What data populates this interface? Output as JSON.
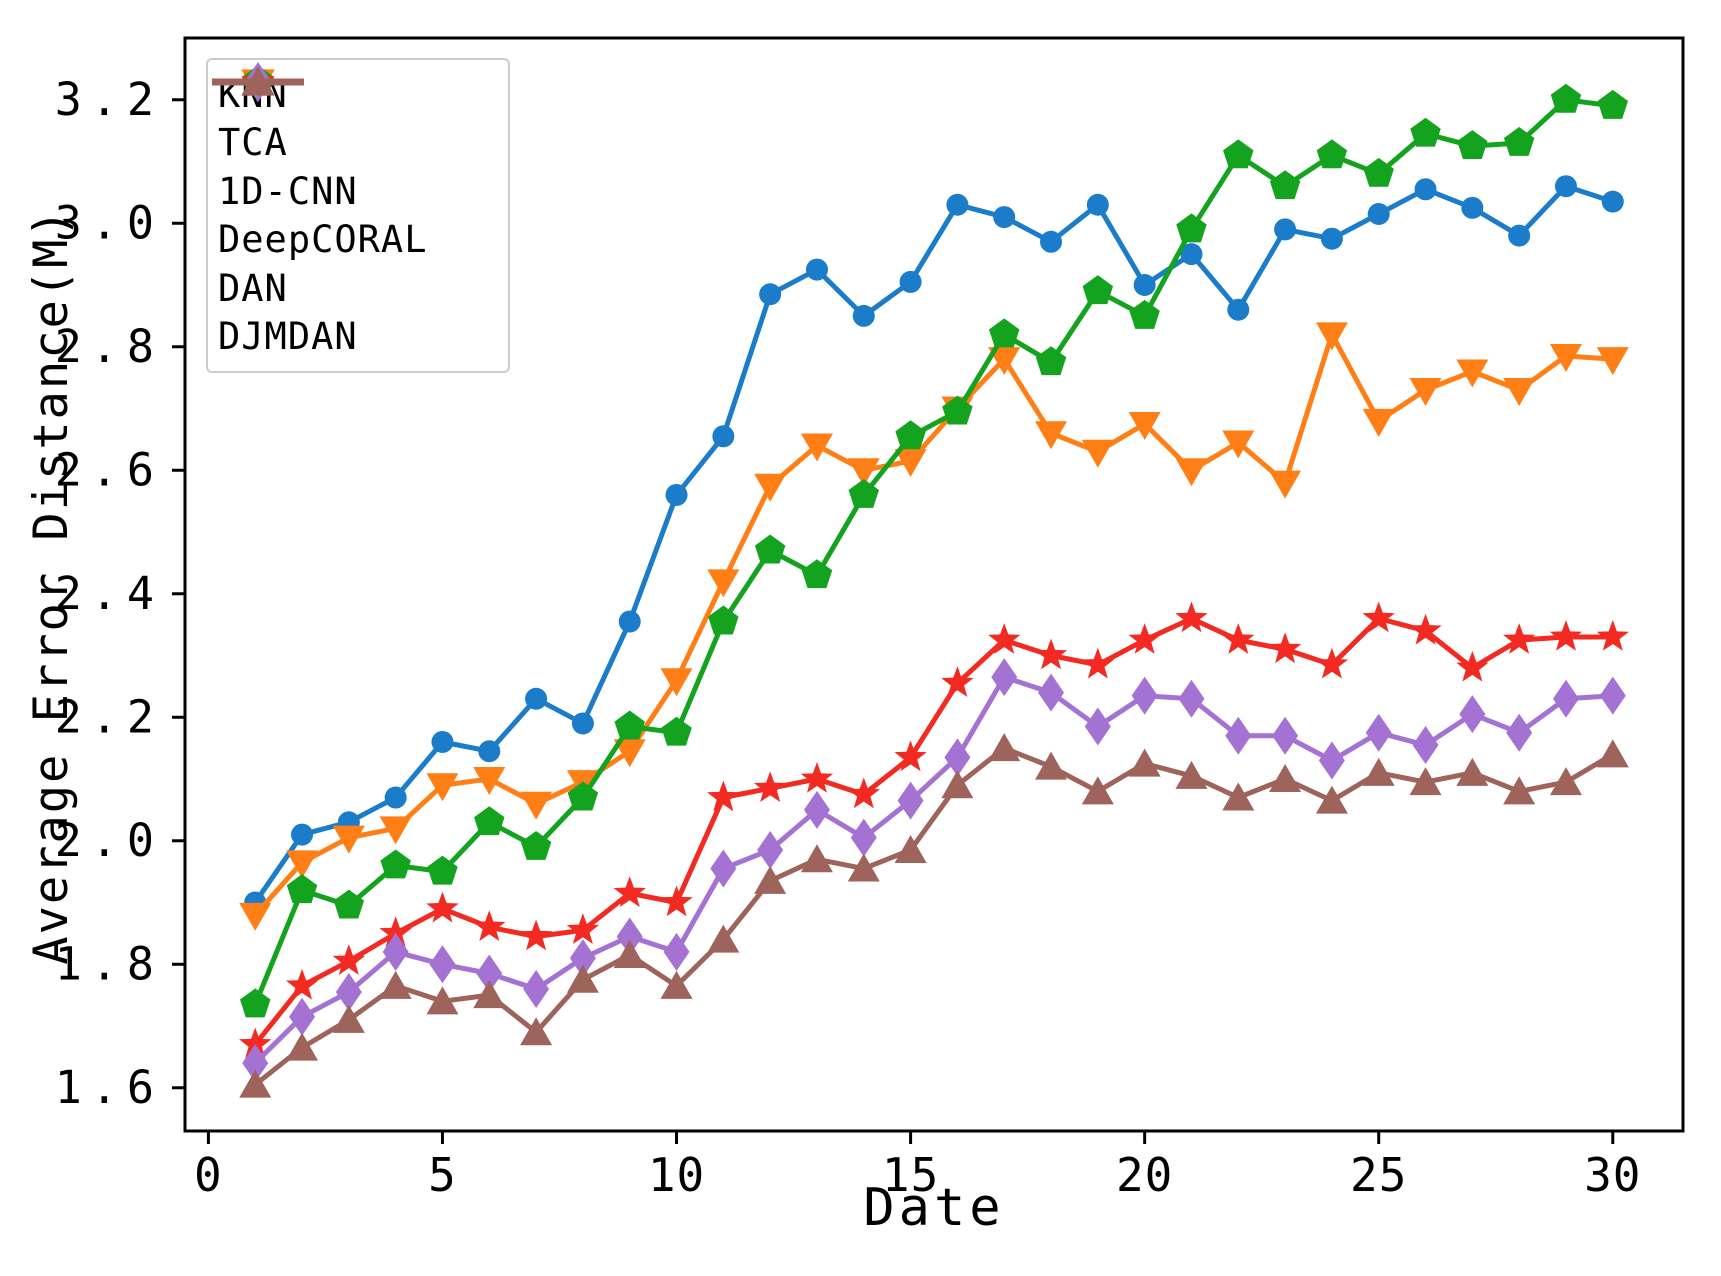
{
  "figure": {
    "background": "#ffffff",
    "spine_color": "#000000",
    "tick_color": "#000000"
  },
  "chart_data": {
    "type": "line",
    "title": "",
    "xlabel": "Date",
    "ylabel": "Average Error Distance(M)",
    "grid": false,
    "legend_position": "upper-left",
    "xlim": [
      -0.5,
      31.5
    ],
    "ylim": [
      1.53,
      3.3
    ],
    "x_ticks": [
      0,
      5,
      10,
      15,
      20,
      25,
      30
    ],
    "y_ticks": [
      1.6,
      1.8,
      2.0,
      2.2,
      2.4,
      2.6,
      2.8,
      3.0,
      3.2
    ],
    "x": [
      1,
      2,
      3,
      4,
      5,
      6,
      7,
      8,
      9,
      10,
      11,
      12,
      13,
      14,
      15,
      16,
      17,
      18,
      19,
      20,
      21,
      22,
      23,
      24,
      25,
      26,
      27,
      28,
      29,
      30
    ],
    "series": [
      {
        "name": "KNN",
        "color": "#1b7cc9",
        "marker": "circle",
        "values": [
          1.9,
          2.01,
          2.03,
          2.07,
          2.16,
          2.145,
          2.23,
          2.19,
          2.355,
          2.56,
          2.655,
          2.885,
          2.925,
          2.85,
          2.905,
          3.03,
          3.01,
          2.97,
          3.03,
          2.9,
          2.95,
          2.86,
          2.99,
          2.975,
          3.015,
          3.055,
          3.025,
          2.98,
          3.06,
          3.035
        ]
      },
      {
        "name": "TCA",
        "color": "#ff7f16",
        "marker": "triangle-down",
        "values": [
          1.88,
          1.965,
          2.005,
          2.02,
          2.09,
          2.1,
          2.06,
          2.095,
          2.145,
          2.26,
          2.42,
          2.575,
          2.64,
          2.6,
          2.615,
          2.7,
          2.78,
          2.66,
          2.63,
          2.675,
          2.6,
          2.645,
          2.58,
          2.82,
          2.68,
          2.73,
          2.76,
          2.73,
          2.785,
          2.78
        ]
      },
      {
        "name": "1D-CNN",
        "color": "#13a31e",
        "marker": "pentagon",
        "values": [
          1.735,
          1.92,
          1.895,
          1.96,
          1.95,
          2.03,
          1.99,
          2.07,
          2.185,
          2.175,
          2.355,
          2.47,
          2.43,
          2.56,
          2.655,
          2.695,
          2.82,
          2.775,
          2.89,
          2.85,
          2.99,
          3.11,
          3.06,
          3.11,
          3.08,
          3.145,
          3.125,
          3.13,
          3.2,
          3.19
        ]
      },
      {
        "name": "DeepCORAL",
        "color": "#f32a22",
        "marker": "star",
        "values": [
          1.67,
          1.765,
          1.805,
          1.85,
          1.89,
          1.86,
          1.845,
          1.855,
          1.915,
          1.9,
          2.07,
          2.085,
          2.1,
          2.075,
          2.135,
          2.255,
          2.325,
          2.3,
          2.285,
          2.325,
          2.36,
          2.325,
          2.31,
          2.285,
          2.36,
          2.34,
          2.28,
          2.325,
          2.33,
          2.33
        ]
      },
      {
        "name": "DAN",
        "color": "#a472d2",
        "marker": "diamond",
        "values": [
          1.64,
          1.715,
          1.755,
          1.82,
          1.8,
          1.785,
          1.76,
          1.81,
          1.845,
          1.82,
          1.955,
          1.985,
          2.05,
          2.005,
          2.065,
          2.135,
          2.265,
          2.24,
          2.185,
          2.235,
          2.23,
          2.17,
          2.17,
          2.13,
          2.175,
          2.155,
          2.205,
          2.175,
          2.23,
          2.235
        ]
      },
      {
        "name": "DJMDAN",
        "color": "#9e635a",
        "marker": "triangle-up",
        "values": [
          1.605,
          1.665,
          1.71,
          1.765,
          1.74,
          1.75,
          1.69,
          1.775,
          1.815,
          1.765,
          1.84,
          1.935,
          1.97,
          1.955,
          1.985,
          2.09,
          2.15,
          2.12,
          2.08,
          2.125,
          2.105,
          2.07,
          2.1,
          2.065,
          2.11,
          2.095,
          2.11,
          2.08,
          2.095,
          2.14
        ]
      }
    ]
  }
}
